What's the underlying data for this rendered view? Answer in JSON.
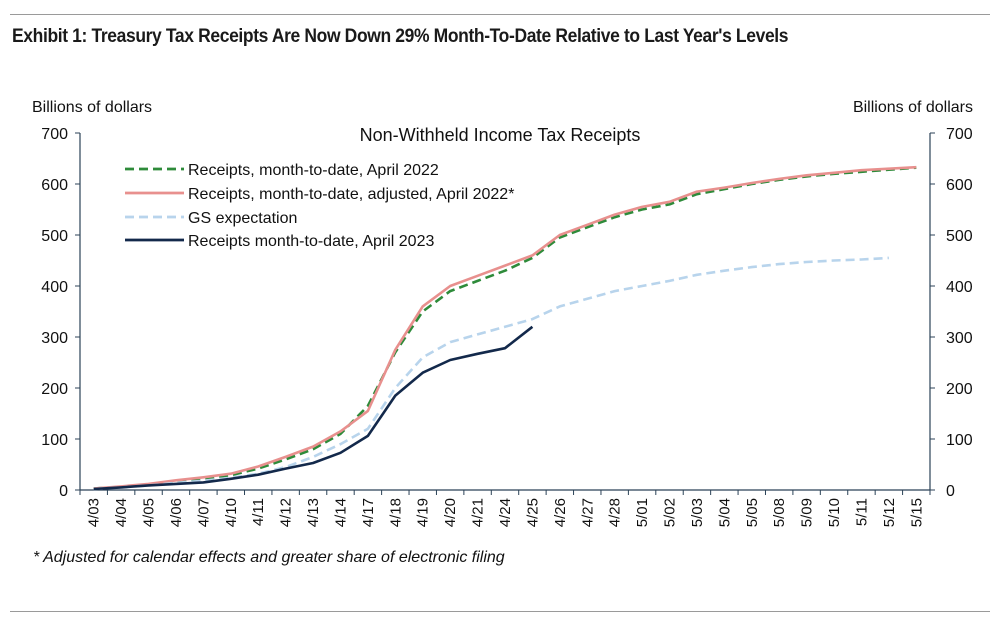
{
  "header": {
    "title": "Exhibit 1: Treasury Tax Receipts Are Now Down 29% Month-To-Date Relative to Last Year's Levels"
  },
  "footnote": "* Adjusted for calendar effects and greater share of electronic filing",
  "chart_data": {
    "type": "line",
    "title": "Non-Withheld Income Tax Receipts",
    "ylabel_left": "Billions of dollars",
    "ylabel_right": "Billions of dollars",
    "ylim": [
      0,
      700
    ],
    "yticks": [
      0,
      100,
      200,
      300,
      400,
      500,
      600,
      700
    ],
    "grid": false,
    "legend_position": "top-left",
    "categories": [
      "4/03",
      "4/04",
      "4/05",
      "4/06",
      "4/07",
      "4/10",
      "4/11",
      "4/12",
      "4/13",
      "4/14",
      "4/17",
      "4/18",
      "4/19",
      "4/20",
      "4/21",
      "4/24",
      "4/25",
      "4/26",
      "4/27",
      "4/28",
      "5/01",
      "5/02",
      "5/03",
      "5/04",
      "5/05",
      "5/08",
      "5/09",
      "5/10",
      "5/11",
      "5/12",
      "5/15"
    ],
    "series": [
      {
        "name": "Receipts, month-to-date, April 2022",
        "color": "#2e8b3a",
        "style": "dashed",
        "values": [
          3,
          6,
          11,
          17,
          22,
          29,
          42,
          60,
          80,
          110,
          165,
          270,
          350,
          390,
          410,
          430,
          455,
          495,
          515,
          535,
          550,
          560,
          580,
          590,
          600,
          608,
          615,
          620,
          624,
          628,
          632
        ]
      },
      {
        "name": "Receipts, month-to-date, adjusted, April 2022*",
        "color": "#e8908e",
        "style": "solid",
        "values": [
          3,
          7,
          12,
          19,
          25,
          32,
          46,
          65,
          85,
          115,
          155,
          275,
          360,
          400,
          420,
          440,
          460,
          500,
          520,
          540,
          555,
          565,
          585,
          593,
          602,
          610,
          617,
          622,
          627,
          630,
          633
        ]
      },
      {
        "name": "GS expectation",
        "color": "#b8d4ec",
        "style": "dashed",
        "values": [
          2,
          5,
          9,
          14,
          18,
          24,
          32,
          45,
          65,
          90,
          120,
          200,
          260,
          290,
          305,
          320,
          335,
          360,
          375,
          390,
          400,
          410,
          422,
          430,
          437,
          443,
          447,
          450,
          452,
          455,
          null
        ]
      },
      {
        "name": "Receipts month-to-date, April 2023",
        "color": "#13294b",
        "style": "solid",
        "values": [
          2,
          5,
          9,
          12,
          15,
          22,
          30,
          42,
          53,
          73,
          106,
          185,
          230,
          255,
          267,
          278,
          320,
          null,
          null,
          null,
          null,
          null,
          null,
          null,
          null,
          null,
          null,
          null,
          null,
          null,
          null
        ]
      }
    ]
  }
}
